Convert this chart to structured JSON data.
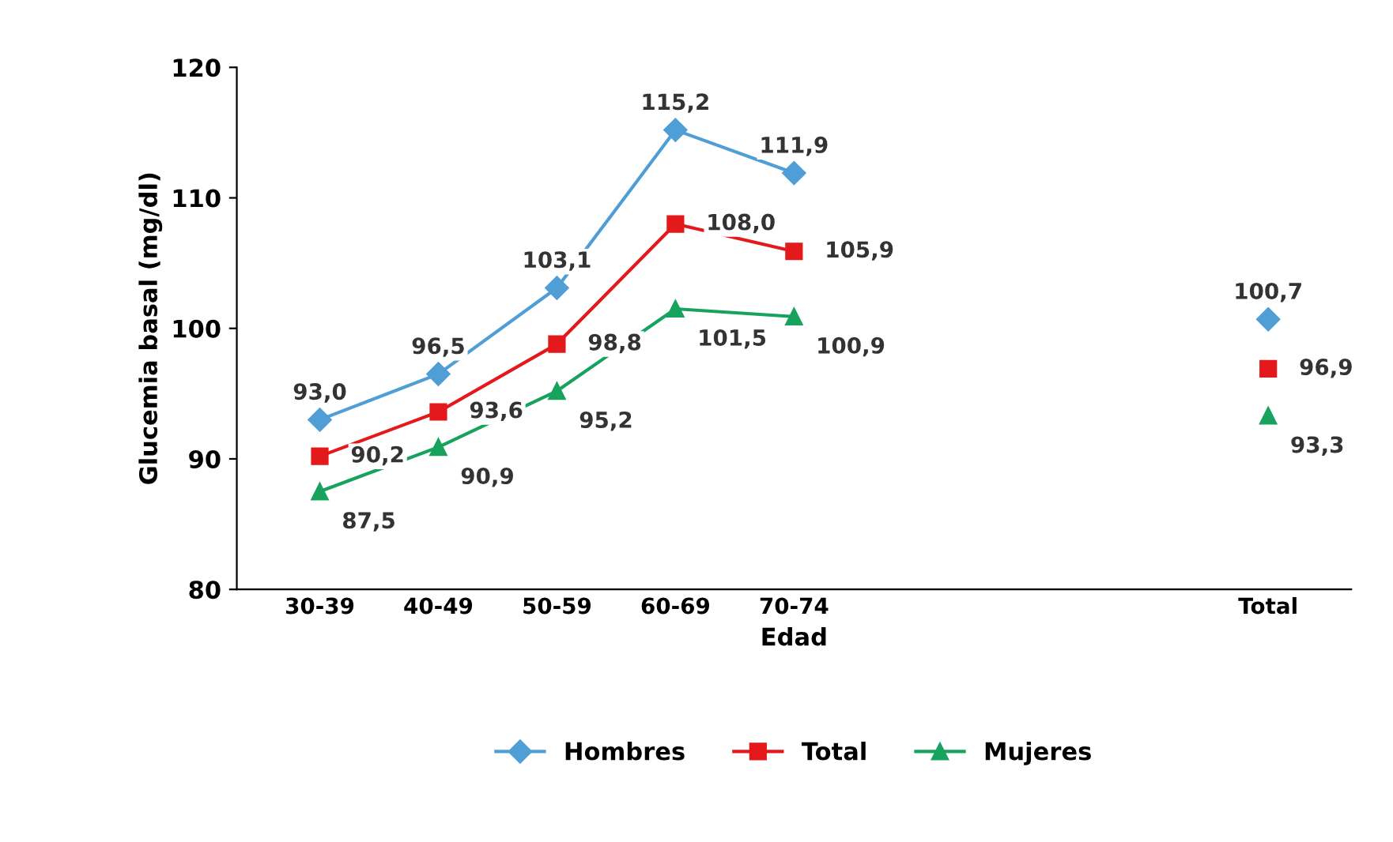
{
  "chart_data": {
    "type": "line",
    "xlabel": "Edad",
    "ylabel": "Glucemia basal (mg/dl)",
    "categories": [
      "30-39",
      "40-49",
      "50-59",
      "60-69",
      "70-74",
      null,
      null,
      null,
      "Total"
    ],
    "ylim": [
      80,
      120
    ],
    "yticks": [
      80,
      90,
      100,
      110,
      120
    ],
    "grid": false,
    "legend": "bottom",
    "data_labels": true,
    "series": [
      {
        "name": "Hombres",
        "color": "#4f9fd6",
        "marker": "diamond",
        "values": [
          93.0,
          96.5,
          103.1,
          115.2,
          111.9,
          null,
          null,
          null,
          100.7
        ],
        "value_labels": [
          "93,0",
          "96,5",
          "103,1",
          "115,2",
          "111,9",
          null,
          null,
          null,
          "100,7"
        ]
      },
      {
        "name": "Total",
        "color": "#e3191c",
        "marker": "square",
        "values": [
          90.2,
          93.6,
          98.8,
          108.0,
          105.9,
          null,
          null,
          null,
          96.9
        ],
        "value_labels": [
          "90,2",
          "93,6",
          "98,8",
          "108,0",
          "105,9",
          null,
          null,
          null,
          "96,9"
        ]
      },
      {
        "name": "Mujeres",
        "color": "#17a35e",
        "marker": "triangle",
        "values": [
          87.5,
          90.9,
          95.2,
          101.5,
          100.9,
          null,
          null,
          null,
          93.3
        ],
        "value_labels": [
          "87,5",
          "90,9",
          "95,2",
          "101,5",
          "100,9",
          null,
          null,
          null,
          "93,3"
        ]
      }
    ]
  }
}
